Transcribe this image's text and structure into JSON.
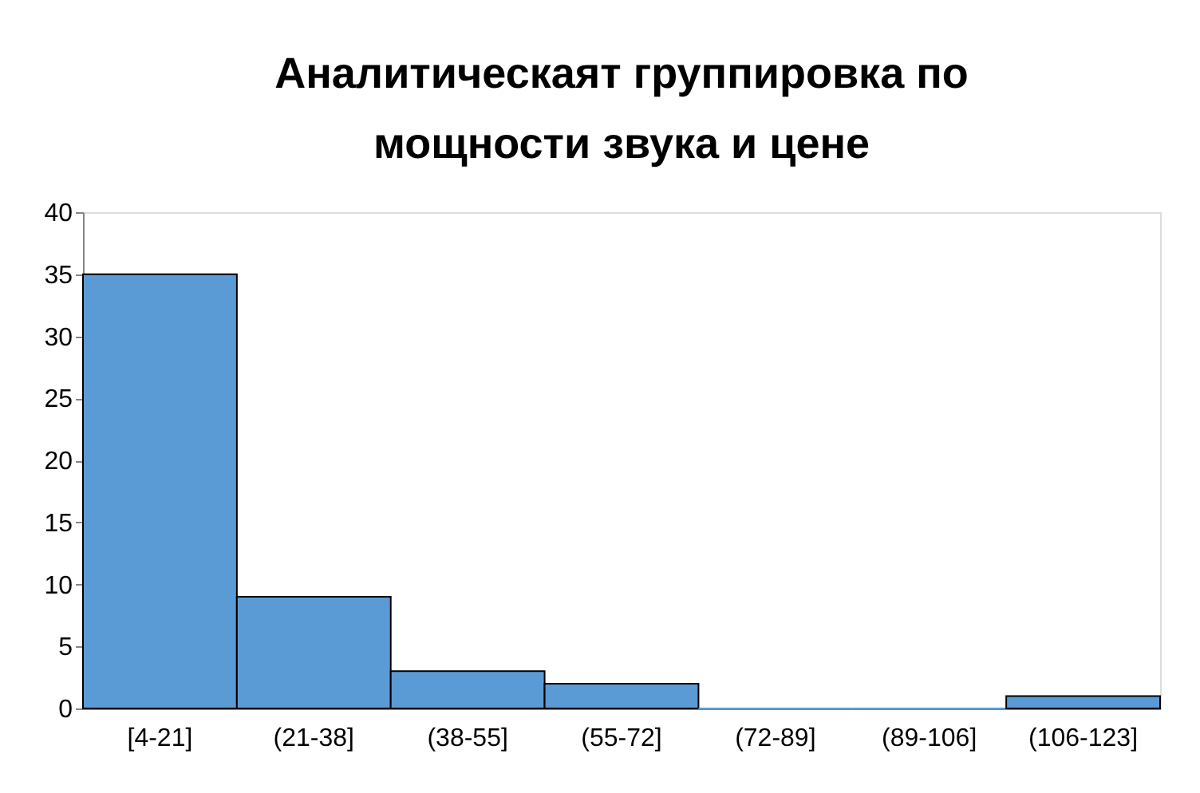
{
  "chart_data": {
    "type": "bar",
    "title": "Аналитическаят группировка по мощности звука и цене",
    "categories": [
      "[4-21]",
      "(21-38]",
      "(38-55]",
      "(55-72]",
      "(72-89]",
      "(89-106]",
      "(106-123]"
    ],
    "values": [
      35,
      9,
      3,
      2,
      0,
      0,
      1
    ],
    "color": "#5b9bd5",
    "ylim": [
      0,
      40
    ],
    "yticks": [
      0,
      5,
      10,
      15,
      20,
      25,
      30,
      35,
      40
    ],
    "grid": false
  }
}
